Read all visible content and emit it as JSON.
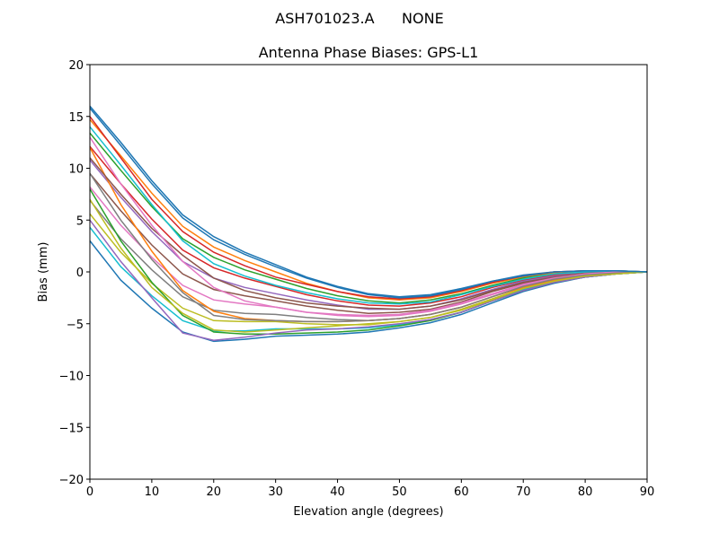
{
  "chart_data": {
    "type": "line",
    "suptitle": "ASH701023.A      NONE",
    "title": "Antenna Phase Biases: GPS-L1",
    "xlabel": "Elevation angle (degrees)",
    "ylabel": "Bias (mm)",
    "xlim": [
      0,
      90
    ],
    "ylim": [
      -20,
      20
    ],
    "grid": false,
    "xticks": [
      0,
      10,
      20,
      30,
      40,
      50,
      60,
      70,
      80,
      90
    ],
    "yticks": [
      -20,
      -15,
      -10,
      -5,
      0,
      5,
      10,
      15,
      20
    ],
    "xtick_labels": [
      "0",
      "10",
      "20",
      "30",
      "40",
      "50",
      "60",
      "70",
      "80",
      "90"
    ],
    "ytick_labels": [
      "−20",
      "−15",
      "−10",
      "−5",
      "0",
      "5",
      "10",
      "15",
      "20"
    ],
    "colors": [
      "#1f77b4",
      "#ff7f0e",
      "#2ca02c",
      "#d62728",
      "#9467bd",
      "#8c564b",
      "#e377c2",
      "#7f7f7f",
      "#bcbd22",
      "#17becf"
    ],
    "x": [
      0,
      5,
      10,
      15,
      20,
      25,
      30,
      35,
      40,
      45,
      50,
      55,
      60,
      65,
      70,
      75,
      80,
      85,
      90
    ],
    "series": [
      {
        "values": [
          16,
          12.5,
          8.8,
          5.5,
          3.4,
          1.9,
          0.7,
          -0.5,
          -1.4,
          -2.1,
          -2.4,
          -2.2,
          -1.6,
          -0.9,
          -0.3,
          0,
          0.1,
          0.1,
          0
        ]
      },
      {
        "values": [
          14.7,
          11.2,
          7.6,
          4.4,
          2.4,
          1.1,
          0.0,
          -1.1,
          -1.9,
          -2.5,
          -2.7,
          -2.5,
          -1.9,
          -1.1,
          -0.5,
          -0.1,
          0.0,
          0.1,
          0
        ]
      },
      {
        "values": [
          13.4,
          9.8,
          6.3,
          3.2,
          1.4,
          0.2,
          -0.7,
          -1.6,
          -2.3,
          -2.8,
          -3.0,
          -2.7,
          -2.1,
          -1.3,
          -0.6,
          -0.2,
          0.0,
          0.0,
          0
        ]
      },
      {
        "values": [
          12.1,
          8.5,
          5.1,
          2.1,
          0.4,
          -0.6,
          -1.4,
          -2.2,
          -2.8,
          -3.2,
          -3.3,
          -3.0,
          -2.4,
          -1.5,
          -0.8,
          -0.3,
          -0.1,
          0,
          0
        ]
      },
      {
        "values": [
          10.8,
          7.2,
          3.9,
          1.0,
          -0.6,
          -1.5,
          -2.1,
          -2.7,
          -3.2,
          -3.6,
          -3.6,
          -3.3,
          -2.6,
          -1.7,
          -0.9,
          -0.4,
          -0.1,
          0,
          0
        ]
      },
      {
        "values": [
          9.5,
          5.9,
          2.6,
          -0.2,
          -1.7,
          -2.3,
          -2.8,
          -3.3,
          -3.7,
          -4.0,
          -3.9,
          -3.6,
          -2.9,
          -1.9,
          -1.1,
          -0.6,
          -0.2,
          0,
          0
        ]
      },
      {
        "values": [
          8.2,
          4.5,
          1.4,
          -1.3,
          -2.7,
          -3.1,
          -3.4,
          -3.9,
          -4.2,
          -4.3,
          -4.2,
          -3.8,
          -3.1,
          -2.2,
          -1.3,
          -0.7,
          -0.3,
          -0.1,
          0
        ]
      },
      {
        "values": [
          6.9,
          3.2,
          0.2,
          -2.4,
          -3.7,
          -4.0,
          -4.1,
          -4.4,
          -4.6,
          -4.7,
          -4.5,
          -4.1,
          -3.4,
          -2.4,
          -1.4,
          -0.8,
          -0.3,
          -0.1,
          0
        ]
      },
      {
        "values": [
          5.6,
          1.9,
          -1.1,
          -3.5,
          -4.7,
          -4.8,
          -4.8,
          -5.0,
          -5.1,
          -5.1,
          -4.8,
          -4.4,
          -3.6,
          -2.6,
          -1.6,
          -0.9,
          -0.4,
          -0.2,
          0
        ]
      },
      {
        "values": [
          4.3,
          0.5,
          -2.3,
          -4.7,
          -5.7,
          -5.7,
          -5.5,
          -5.5,
          -5.5,
          -5.4,
          -5.1,
          -4.6,
          -3.9,
          -2.8,
          -1.7,
          -1.0,
          -0.5,
          -0.2,
          0
        ]
      },
      {
        "values": [
          3,
          -0.8,
          -3.5,
          -5.8,
          -6.7,
          -6.5,
          -6.2,
          -6.1,
          -6.0,
          -5.8,
          -5.4,
          -4.9,
          -4.1,
          -3.0,
          -1.9,
          -1.1,
          -0.5,
          -0.2,
          0
        ]
      },
      {
        "values": [
          12,
          6.5,
          2,
          -1.8,
          -3.8,
          -4.5,
          -4.7,
          -4.8,
          -4.8,
          -4.7,
          -4.5,
          -4.1,
          -3.4,
          -2.4,
          -1.5,
          -0.8,
          -0.3,
          -0.1,
          0
        ]
      },
      {
        "values": [
          8,
          3,
          -1,
          -4.2,
          -5.8,
          -6.0,
          -6.0,
          -5.9,
          -5.8,
          -5.6,
          -5.2,
          -4.7,
          -3.9,
          -2.8,
          -1.8,
          -1.0,
          -0.5,
          -0.2,
          0
        ]
      },
      {
        "values": [
          15,
          11,
          7,
          3.9,
          1.9,
          0.6,
          -0.5,
          -1.2,
          -1.9,
          -2.4,
          -2.6,
          -2.4,
          -1.8,
          -1.0,
          -0.4,
          0,
          0.1,
          0.1,
          0
        ]
      },
      {
        "values": [
          5,
          1.0,
          -2.5,
          -5.9,
          -6.6,
          -6.3,
          -5.9,
          -5.6,
          -5.5,
          -5.3,
          -5.0,
          -4.6,
          -3.9,
          -2.8,
          -1.8,
          -1.0,
          -0.5,
          -0.2,
          0
        ]
      },
      {
        "values": [
          11,
          7.5,
          4.2,
          1.6,
          -0.6,
          -1.8,
          -2.5,
          -3.0,
          -3.3,
          -3.5,
          -3.6,
          -3.3,
          -2.7,
          -1.8,
          -1.0,
          -0.5,
          -0.1,
          0,
          0
        ]
      },
      {
        "values": [
          13,
          8.5,
          4.5,
          1.0,
          -1.5,
          -2.8,
          -3.4,
          -3.9,
          -4.1,
          -4.2,
          -4.1,
          -3.7,
          -3.0,
          -2.1,
          -1.2,
          -0.6,
          -0.2,
          0,
          0
        ]
      },
      {
        "values": [
          9.5,
          5,
          1.2,
          -2.0,
          -4.2,
          -4.6,
          -4.7,
          -4.8,
          -4.8,
          -4.7,
          -4.5,
          -4.1,
          -3.4,
          -2.4,
          -1.4,
          -0.7,
          -0.3,
          -0.1,
          0
        ]
      },
      {
        "values": [
          7,
          2.3,
          -1.5,
          -4.0,
          -5.6,
          -5.8,
          -5.6,
          -5.4,
          -5.2,
          -5.0,
          -4.8,
          -4.4,
          -3.7,
          -2.7,
          -1.6,
          -0.9,
          -0.4,
          -0.2,
          0
        ]
      },
      {
        "values": [
          14,
          10.3,
          6.5,
          3.0,
          0.8,
          -0.4,
          -1.3,
          -2.0,
          -2.6,
          -3.0,
          -3.1,
          -2.9,
          -2.2,
          -1.4,
          -0.7,
          -0.2,
          0,
          0.1,
          0
        ]
      },
      {
        "values": [
          15.8,
          12.2,
          8.5,
          5.2,
          3.1,
          1.7,
          0.5,
          -0.6,
          -1.5,
          -2.2,
          -2.5,
          -2.3,
          -1.7,
          -0.9,
          -0.4,
          0,
          0.1,
          0.1,
          0
        ]
      }
    ]
  }
}
